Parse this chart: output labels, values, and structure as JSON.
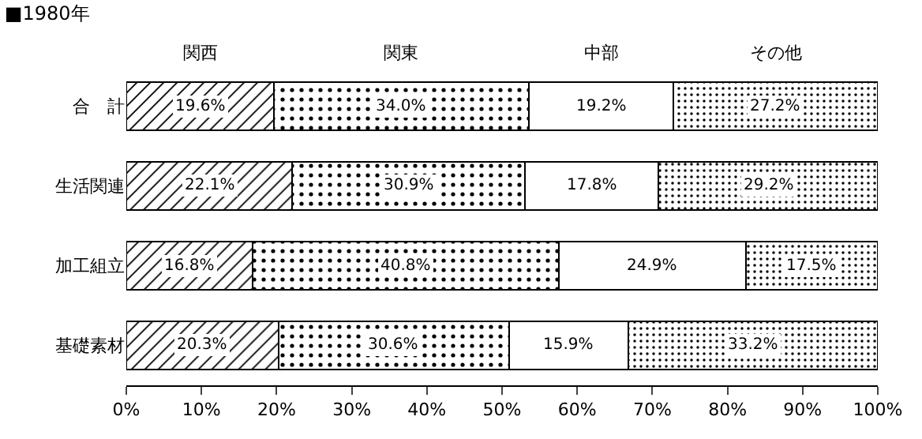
{
  "chart_data": {
    "type": "bar",
    "title": "■1980年",
    "orientation": "horizontal",
    "stacked": true,
    "categories": [
      "合　計",
      "生活関連",
      "加工組立",
      "基礎素材"
    ],
    "series": [
      {
        "name": "関西",
        "color": "#000000",
        "values": [
          19.6,
          22.1,
          16.8,
          20.3
        ],
        "value_labels": [
          "19.6%",
          "22.1%",
          "16.8%",
          "20.3%"
        ]
      },
      {
        "name": "関東",
        "color": "#000000",
        "values": [
          34.0,
          30.9,
          40.8,
          30.6
        ],
        "value_labels": [
          "34.0%",
          "30.9%",
          "40.8%",
          "30.6%"
        ]
      },
      {
        "name": "中部",
        "color": "#ffffff",
        "values": [
          19.2,
          17.8,
          24.9,
          15.9
        ],
        "value_labels": [
          "19.2%",
          "17.8%",
          "24.9%",
          "15.9%"
        ]
      },
      {
        "name": "その他",
        "color": "#000000",
        "values": [
          27.2,
          29.2,
          17.5,
          33.2
        ],
        "value_labels": [
          "27.2%",
          "29.2%",
          "17.5%",
          "33.2%"
        ]
      }
    ],
    "xlim": [
      0,
      100
    ],
    "xticks": [
      {
        "value": 0,
        "label": "0%"
      },
      {
        "value": 10,
        "label": "10%"
      },
      {
        "value": 20,
        "label": "20%"
      },
      {
        "value": 30,
        "label": "30%"
      },
      {
        "value": 40,
        "label": "40%"
      },
      {
        "value": 50,
        "label": "50%"
      },
      {
        "value": 60,
        "label": "60%"
      },
      {
        "value": 70,
        "label": "70%"
      },
      {
        "value": 80,
        "label": "80%"
      },
      {
        "value": 90,
        "label": "90%"
      },
      {
        "value": 100,
        "label": "100%"
      }
    ],
    "grid": false
  }
}
